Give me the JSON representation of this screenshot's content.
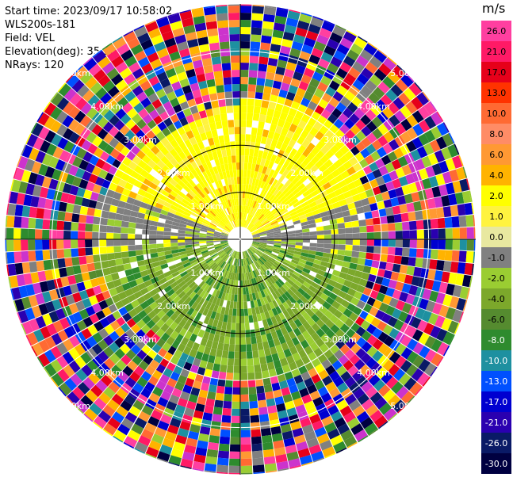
{
  "header": {
    "start_time": "Start time: 2023/09/17 10:58:02",
    "instrument": "WLS200s-181",
    "field": "Field: VEL",
    "elevation": "Elevation(deg): 35.30",
    "nrays": "NRays: 120"
  },
  "chart_data": {
    "type": "heatmap",
    "projection": "polar (PPI scan)",
    "field": "VEL",
    "units": "m/s",
    "nrays": 120,
    "elevation_deg": 35.3,
    "range_ring_labels": [
      "1.00km",
      "2.00km",
      "3.00km",
      "4.00km",
      "5.00km"
    ],
    "colorbar": {
      "unit": "m/s",
      "tick_labels": [
        "26.0",
        "21.0",
        "17.0",
        "13.0",
        "10.0",
        "8.0",
        "6.0",
        "4.0",
        "2.0",
        "1.0",
        "0.0",
        "-1.0",
        "-2.0",
        "-4.0",
        "-6.0",
        "-8.0",
        "-10.0",
        "-13.0",
        "-17.0",
        "-21.0",
        "-26.0",
        "-30.0"
      ],
      "colors": [
        "#ff3fa0",
        "#ff1a66",
        "#e6001a",
        "#ff3300",
        "#ff6a33",
        "#ff8c66",
        "#ff9933",
        "#ffb300",
        "#ffff00",
        "#fff33f",
        "#e8e8a0",
        "#808080",
        "#9acd32",
        "#7ca82b",
        "#558b2f",
        "#2e8b2e",
        "#1e90a0",
        "#0050ff",
        "#0000d0",
        "#2a00b0",
        "#0a1a66",
        "#000040"
      ]
    },
    "pattern": [
      {
        "region": "north, within ~2 km",
        "velocity_m_s": "0 to 4",
        "colors": [
          "#ffff00",
          "#ffb300"
        ]
      },
      {
        "region": "east-west band, ~1-2 km",
        "velocity_m_s": "-1 to 1",
        "colors": [
          "#808080"
        ]
      },
      {
        "region": "south, within ~3 km",
        "velocity_m_s": "-1 to -4",
        "colors": [
          "#9acd32",
          "#6b8e23"
        ]
      },
      {
        "region": "beyond ~3 km",
        "velocity_m_s": "noise, all values",
        "colors": [
          "mixed"
        ]
      }
    ]
  }
}
